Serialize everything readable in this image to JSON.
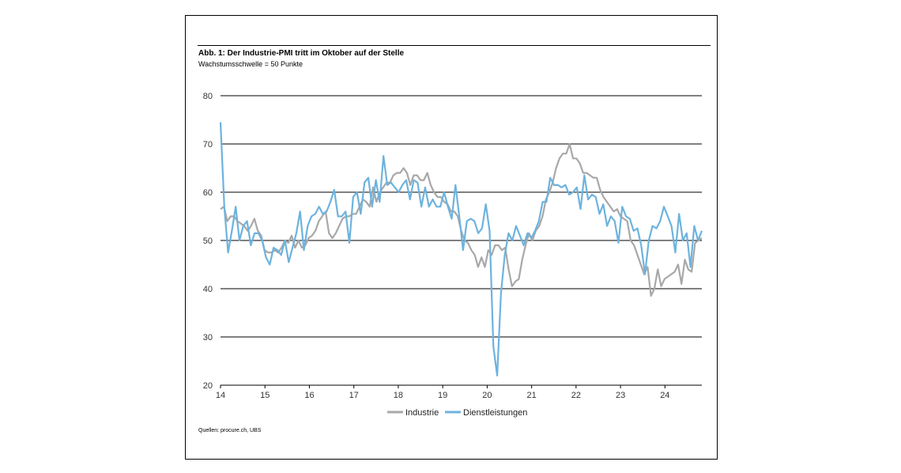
{
  "header": {
    "title": "Abb. 1: Der Industrie-PMI tritt im Oktober auf der Stelle",
    "subtitle": "Wachstumsschwelle = 50 Punkte"
  },
  "footer": {
    "source": "Quellen: procure.ch, UBS"
  },
  "colors": {
    "industrie": "#a8a8a8",
    "dienstleistungen": "#6db3de"
  },
  "chart_data": {
    "type": "line",
    "title": "Abb. 1: Der Industrie-PMI tritt im Oktober auf der Stelle",
    "subtitle": "Wachstumsschwelle = 50 Punkte",
    "xlabel": "",
    "ylabel": "",
    "ylim": [
      20,
      80
    ],
    "yticks": [
      20,
      30,
      40,
      50,
      60,
      70,
      80
    ],
    "xticks": [
      "14",
      "15",
      "16",
      "17",
      "18",
      "19",
      "20",
      "21",
      "22",
      "23",
      "24"
    ],
    "grid": "horizontal",
    "legend": "bottom",
    "x_start": "2014-01",
    "x_end": "2024-10",
    "series": [
      {
        "name": "Industrie",
        "values": [
          56.5,
          57,
          54,
          55,
          55,
          54,
          53.5,
          53,
          52,
          53,
          54.5,
          52,
          51,
          48,
          47.5,
          47.5,
          48,
          47.5,
          48.5,
          50,
          49.5,
          51,
          48.5,
          50,
          48.5,
          49,
          50.5,
          51,
          52,
          54,
          55,
          56,
          51.5,
          50.5,
          51.5,
          53,
          54.5,
          55,
          55,
          55.5,
          55.5,
          57,
          58.5,
          58,
          57,
          61,
          58,
          60,
          61,
          62,
          62,
          63.5,
          64,
          64,
          65,
          64,
          61.5,
          63.5,
          63.5,
          62.5,
          62.5,
          64,
          61.5,
          60,
          59,
          59,
          58,
          57.5,
          56,
          56,
          55,
          52,
          50,
          49.5,
          48,
          47,
          44.5,
          46.5,
          44.5,
          48,
          47,
          49,
          49,
          48,
          48.5,
          44,
          40.5,
          41.5,
          42,
          46,
          49,
          51.5,
          50,
          52,
          53,
          55,
          58.5,
          60,
          62,
          65,
          67,
          68,
          68,
          70,
          67,
          67,
          66,
          64,
          64,
          63.5,
          63,
          63,
          60.5,
          59,
          58,
          57,
          56,
          56.5,
          55,
          54.5,
          54,
          50,
          49,
          47,
          45,
          43,
          44.5,
          38.5,
          40,
          44,
          40.5,
          42,
          42.5,
          43,
          43.5,
          45,
          41,
          46,
          44,
          43.5,
          49.5,
          50,
          50.5
        ],
        "color": "#a8a8a8"
      },
      {
        "name": "Dienstleistungen",
        "values": [
          74.5,
          57,
          47.5,
          52,
          57,
          50,
          53,
          54,
          49,
          51.5,
          51.5,
          50,
          46.5,
          45,
          48.5,
          48,
          47,
          50,
          45.5,
          48.5,
          51.5,
          56,
          48,
          53,
          55,
          55.5,
          57,
          55.5,
          56,
          58,
          60.5,
          55,
          55,
          56,
          49.5,
          59,
          60,
          55.5,
          62,
          63,
          57,
          62.5,
          58,
          67.5,
          61.5,
          62,
          61,
          60,
          61.5,
          62.5,
          58.5,
          62.5,
          62,
          57,
          61,
          57,
          58.5,
          57,
          57,
          60,
          57,
          54.5,
          61.5,
          55,
          48,
          54,
          54.5,
          54,
          51.5,
          52.5,
          57.5,
          52,
          28,
          22,
          39,
          47,
          51.5,
          50,
          53,
          51,
          49,
          51.5,
          50.5,
          52,
          54,
          58,
          58,
          63,
          61.5,
          61.5,
          61,
          61.5,
          59.5,
          60,
          61,
          56.5,
          63.5,
          58.5,
          59.5,
          59,
          55.5,
          57.5,
          53,
          55,
          54,
          49.5,
          57,
          55,
          54.5,
          52,
          52.5,
          49,
          43,
          50,
          53,
          52.5,
          54,
          57,
          55,
          53,
          47.5,
          55.5,
          50,
          51.5,
          44.5,
          53,
          50,
          52
        ]
      }
    ]
  }
}
